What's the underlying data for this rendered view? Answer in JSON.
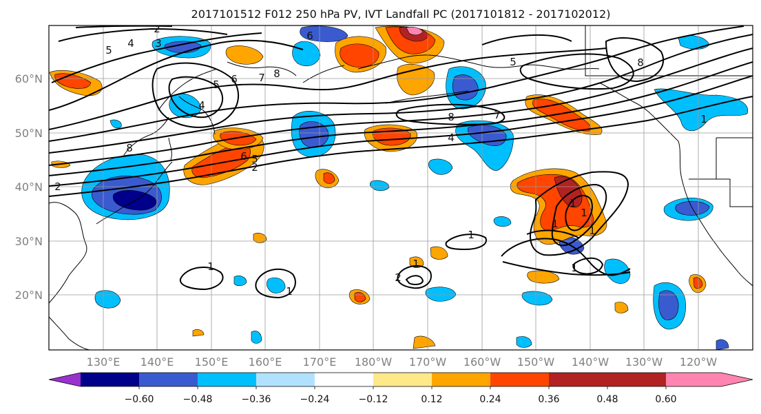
{
  "title": "2017101512 F012 250 hPa PV, IVT Landfall PC (2017101812 - 2017102012)",
  "lat_labels": [
    "60°N",
    "50°N",
    "40°N",
    "30°N",
    "20°N"
  ],
  "lon_labels": [
    "130°E",
    "140°E",
    "150°E",
    "160°E",
    "170°E",
    "180°W",
    "170°W",
    "160°W",
    "150°W",
    "140°W",
    "130°W",
    "120°W"
  ],
  "colorbar": {
    "tick_labels": [
      "−0.60",
      "−0.48",
      "−0.36",
      "−0.24",
      "−0.12",
      "0.12",
      "0.24",
      "0.36",
      "0.48",
      "0.60"
    ],
    "colors": [
      "#9932cc",
      "#00008b",
      "#3a5bd0",
      "#00bfff",
      "#b0e2ff",
      "#ffffff",
      "#ffe887",
      "#ffa500",
      "#ff4500",
      "#b22222",
      "#ff85b0"
    ]
  },
  "contour_labels": {
    "jet": [
      "2",
      "4",
      "3",
      "5",
      "6",
      "7",
      "8",
      "5",
      "4",
      "8",
      "6",
      "8",
      "7",
      "4",
      "5",
      "8",
      "2",
      "6",
      "5",
      "2"
    ],
    "south": [
      "1",
      "1",
      "1",
      "1",
      "1",
      "1",
      "1",
      "1",
      "2",
      "1",
      "1"
    ]
  }
}
